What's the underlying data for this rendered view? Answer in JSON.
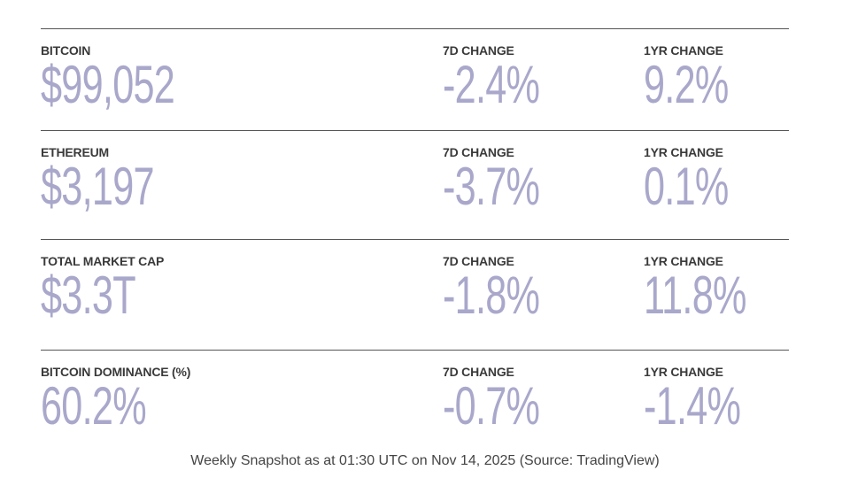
{
  "rows": [
    {
      "label": "BITCOIN",
      "value": "$99,052",
      "change_7d_label": "7D CHANGE",
      "change_7d": "-2.4%",
      "change_1yr_label": "1YR CHANGE",
      "change_1yr": "9.2%"
    },
    {
      "label": "ETHEREUM",
      "value": "$3,197",
      "change_7d_label": "7D CHANGE",
      "change_7d": "-3.7%",
      "change_1yr_label": "1YR CHANGE",
      "change_1yr": "0.1%"
    },
    {
      "label": "TOTAL MARKET CAP",
      "value": "$3.3T",
      "change_7d_label": "7D CHANGE",
      "change_7d": "-1.8%",
      "change_1yr_label": "1YR CHANGE",
      "change_1yr": "11.8%"
    },
    {
      "label": "BITCOIN DOMINANCE (%)",
      "value": "60.2%",
      "change_7d_label": "7D CHANGE",
      "change_7d": "-0.7%",
      "change_1yr_label": "1YR CHANGE",
      "change_1yr": "-1.4%"
    }
  ],
  "footer": "Weekly Snapshot as at 01:30 UTC on Nov 14, 2025 (Source: TradingView)"
}
